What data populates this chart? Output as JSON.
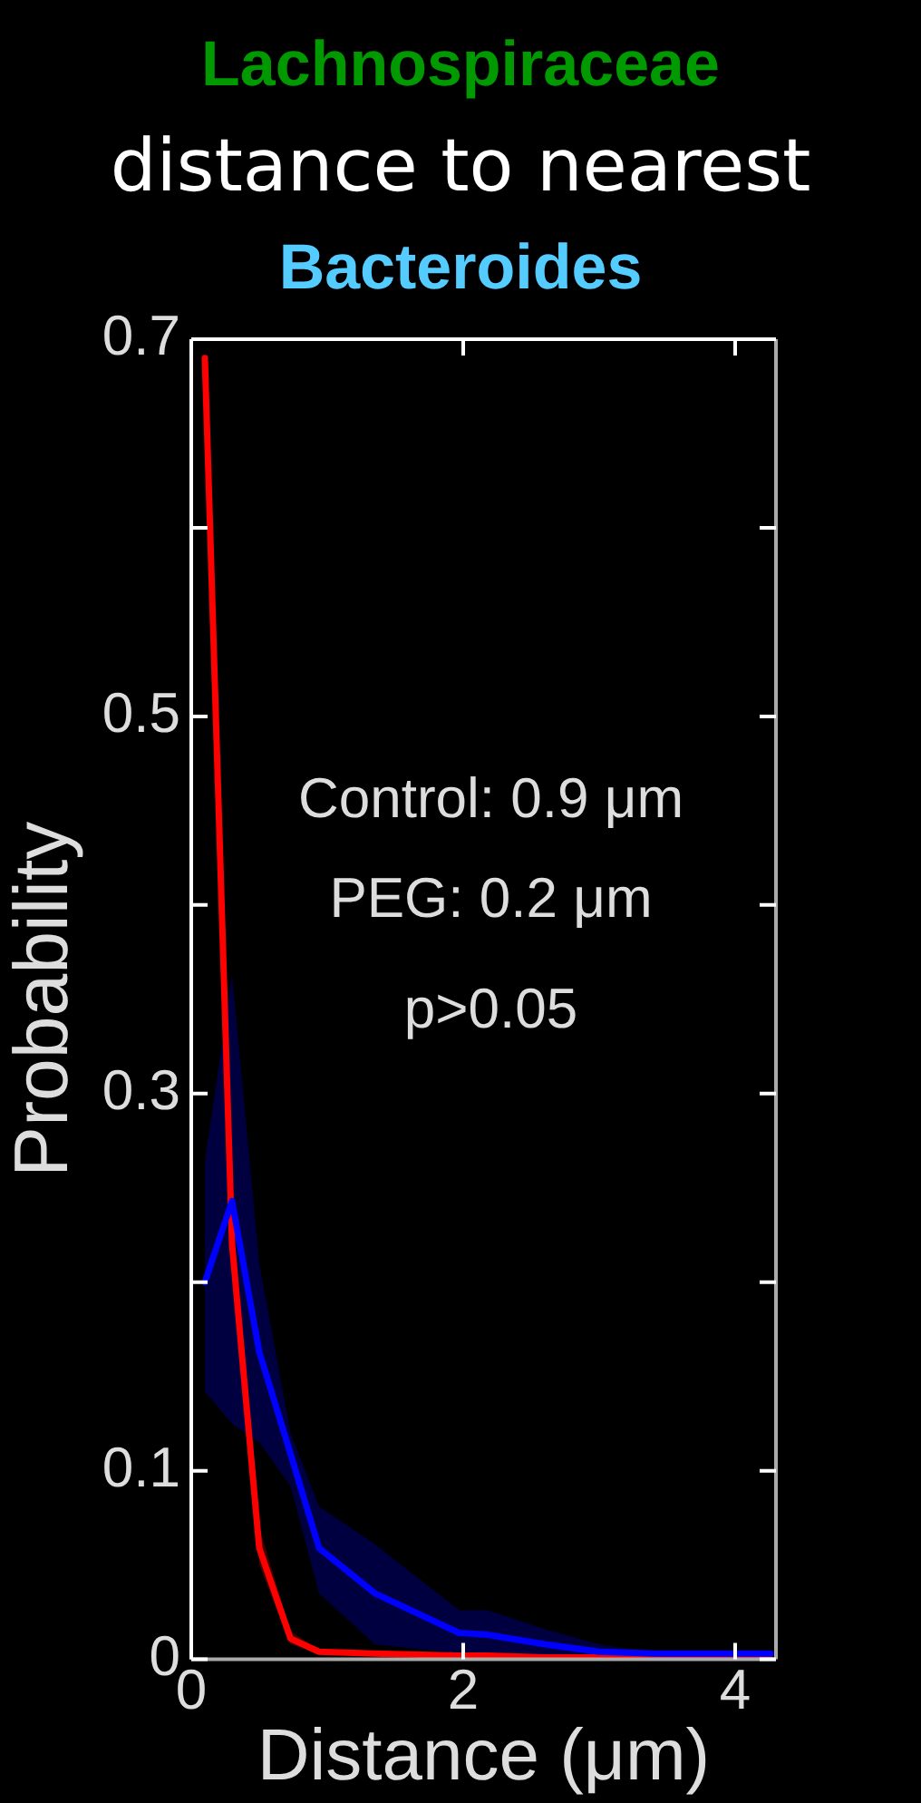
{
  "chart_data": {
    "type": "line",
    "title": "Lachnospiraceae\ndistance to nearest\nBacteroides",
    "xlabel": "Distance (μm)",
    "ylabel": "Probability",
    "xlim": [
      0,
      4.3
    ],
    "xticks": [
      0,
      2,
      4
    ],
    "ylim": [
      0,
      0.7
    ],
    "yticks": [
      0,
      0.1,
      {
        "value": 0.2,
        "label": null
      },
      0.3,
      {
        "value": 0.4,
        "label": null
      },
      0.5,
      {
        "value": 0.6,
        "label": null
      },
      0.7
    ],
    "marker": "none",
    "line_style": "solid",
    "legend": false,
    "annotations": [
      "Control: 0.9 μm",
      "PEG: 0.2 μm",
      "p>0.05"
    ],
    "series": [
      {
        "color": "#0000ff",
        "x": [
          0.1,
          0.3,
          0.5,
          0.73,
          0.94,
          1.35,
          1.97,
          2.18,
          2.6,
          3.0,
          3.42,
          3.83,
          4.26
        ],
        "values": [
          0.2,
          0.243,
          0.163,
          0.109,
          0.059,
          0.035,
          0.014,
          0.013,
          0.008,
          0.004,
          0.003,
          0.003,
          0.003
        ],
        "lower": [
          0.142,
          0.125,
          0.115,
          0.092,
          0.035,
          0.008,
          0.003,
          0.003,
          0.002,
          0.001,
          0,
          0,
          0
        ],
        "upper": [
          0.264,
          0.363,
          0.21,
          0.12,
          0.081,
          0.061,
          0.026,
          0.026,
          0.016,
          0.008,
          0.003,
          0.003,
          0.003
        ]
      },
      {
        "color": "#ff0000",
        "x": [
          0.1,
          0.3,
          0.5,
          0.73,
          0.94,
          1.35,
          1.97,
          2.18,
          2.6,
          3.0,
          3.42,
          3.83,
          4.26
        ],
        "values": [
          0.69,
          0.22,
          0.059,
          0.011,
          0.004,
          0.003,
          0.002,
          0.002,
          0.001,
          0.001,
          0.001,
          0.001,
          0
        ],
        "lower": [
          0.69,
          0.22,
          0.05,
          0.008,
          0.003,
          0.002,
          0.001,
          0.001,
          0.001,
          0,
          0,
          0,
          0
        ],
        "upper": [
          0.69,
          0.22,
          0.07,
          0.015,
          0.005,
          0.004,
          0.003,
          0.003,
          0.002,
          0.002,
          0.001,
          0.001,
          0.001
        ]
      }
    ]
  }
}
